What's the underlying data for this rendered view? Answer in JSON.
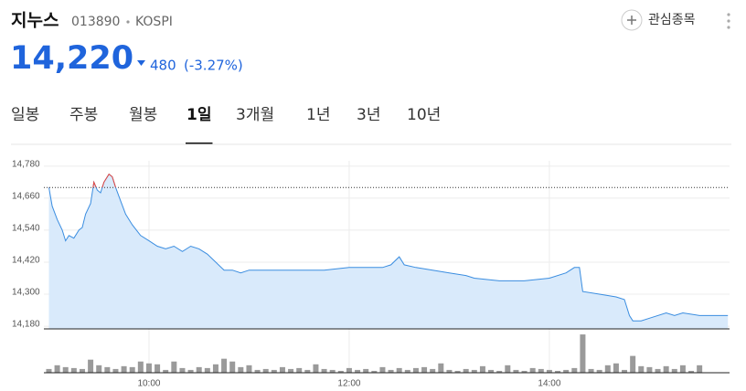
{
  "header": {
    "name": "지누스",
    "code": "013890",
    "market": "KOSPI",
    "watch": "관심종목",
    "price": "14,220",
    "change": "480",
    "change_pct": "(-3.27%)"
  },
  "tabs": {
    "items": [
      "일봉",
      "주봉",
      "월봉",
      "1일",
      "3개월",
      "1년",
      "3년",
      "10년"
    ],
    "active": 3
  },
  "chart_data": [
    {
      "type": "line",
      "x": [
        "09:00",
        "09:02",
        "09:05",
        "09:08",
        "09:10",
        "09:12",
        "09:15",
        "09:18",
        "09:20",
        "09:22",
        "09:25",
        "09:27",
        "09:29",
        "09:31",
        "09:33",
        "09:36",
        "09:38",
        "09:40",
        "09:43",
        "09:46",
        "09:50",
        "09:55",
        "10:00",
        "10:05",
        "10:10",
        "10:15",
        "10:20",
        "10:25",
        "10:30",
        "10:35",
        "10:40",
        "10:45",
        "10:50",
        "10:55",
        "11:00",
        "11:15",
        "11:30",
        "11:45",
        "12:00",
        "12:10",
        "12:20",
        "12:25",
        "12:30",
        "12:33",
        "12:40",
        "12:50",
        "13:00",
        "13:10",
        "13:15",
        "13:30",
        "13:45",
        "14:00",
        "14:10",
        "14:15",
        "14:18",
        "14:20",
        "14:30",
        "14:40",
        "14:45",
        "14:48",
        "14:50",
        "14:55",
        "15:00",
        "15:10",
        "15:15",
        "15:20",
        "15:30",
        "15:47"
      ],
      "values": [
        14700,
        14630,
        14580,
        14540,
        14500,
        14520,
        14510,
        14540,
        14550,
        14600,
        14640,
        14720,
        14690,
        14680,
        14720,
        14750,
        14740,
        14700,
        14650,
        14600,
        14560,
        14520,
        14500,
        14480,
        14470,
        14480,
        14460,
        14480,
        14470,
        14450,
        14420,
        14390,
        14390,
        14380,
        14390,
        14390,
        14390,
        14390,
        14400,
        14400,
        14400,
        14410,
        14440,
        14410,
        14400,
        14390,
        14380,
        14370,
        14360,
        14350,
        14350,
        14360,
        14380,
        14400,
        14400,
        14310,
        14300,
        14290,
        14280,
        14220,
        14200,
        14200,
        14210,
        14230,
        14220,
        14230,
        14220,
        14220
      ],
      "color": "#3a8de0",
      "fill_color": "#d9eafb",
      "above_color": "#e8453c",
      "reference": 14700,
      "ylim": [
        14170,
        14800
      ],
      "yticks": [
        {
          "value": 14780,
          "label": "14,780"
        },
        {
          "value": 14660,
          "label": "14,660"
        },
        {
          "value": 14540,
          "label": "14,540"
        },
        {
          "value": 14420,
          "label": "14,420"
        },
        {
          "value": 14300,
          "label": "14,300"
        },
        {
          "value": 14180,
          "label": "14,180"
        }
      ],
      "xlim": [
        "08:57",
        "15:48"
      ],
      "xticks": [
        "10:00",
        "12:00",
        "14:00"
      ],
      "grid": true
    },
    {
      "type": "bar",
      "x": [
        "09:00",
        "09:05",
        "09:10",
        "09:15",
        "09:20",
        "09:25",
        "09:30",
        "09:35",
        "09:40",
        "09:45",
        "09:50",
        "09:55",
        "10:00",
        "10:05",
        "10:10",
        "10:15",
        "10:20",
        "10:25",
        "10:30",
        "10:35",
        "10:40",
        "10:45",
        "10:50",
        "10:55",
        "11:00",
        "11:05",
        "11:10",
        "11:15",
        "11:20",
        "11:25",
        "11:30",
        "11:35",
        "11:40",
        "11:45",
        "11:50",
        "11:55",
        "12:00",
        "12:05",
        "12:10",
        "12:15",
        "12:20",
        "12:25",
        "12:30",
        "12:35",
        "12:40",
        "12:45",
        "12:50",
        "12:55",
        "13:00",
        "13:05",
        "13:10",
        "13:15",
        "13:20",
        "13:25",
        "13:30",
        "13:35",
        "13:40",
        "13:45",
        "13:50",
        "13:55",
        "14:00",
        "14:05",
        "14:10",
        "14:15",
        "14:20",
        "14:25",
        "14:30",
        "14:35",
        "14:40",
        "14:45",
        "14:50",
        "14:55",
        "15:00",
        "15:05",
        "15:10",
        "15:15",
        "15:20",
        "15:25",
        "15:30"
      ],
      "values": [
        4,
        8,
        6,
        5,
        4,
        14,
        8,
        6,
        4,
        7,
        6,
        12,
        10,
        9,
        3,
        12,
        5,
        3,
        6,
        5,
        9,
        15,
        12,
        6,
        8,
        3,
        4,
        3,
        6,
        4,
        5,
        3,
        9,
        4,
        3,
        2,
        5,
        3,
        4,
        2,
        6,
        3,
        5,
        3,
        5,
        6,
        4,
        10,
        3,
        2,
        4,
        3,
        7,
        3,
        2,
        8,
        3,
        2,
        5,
        4,
        3,
        2,
        3,
        5,
        41,
        4,
        3,
        8,
        10,
        3,
        18,
        7,
        6,
        4,
        7,
        4,
        8,
        2,
        8
      ],
      "color": "#9a9a9a",
      "ylim": [
        0,
        45
      ],
      "xlim": [
        "08:57",
        "15:48"
      ]
    }
  ]
}
